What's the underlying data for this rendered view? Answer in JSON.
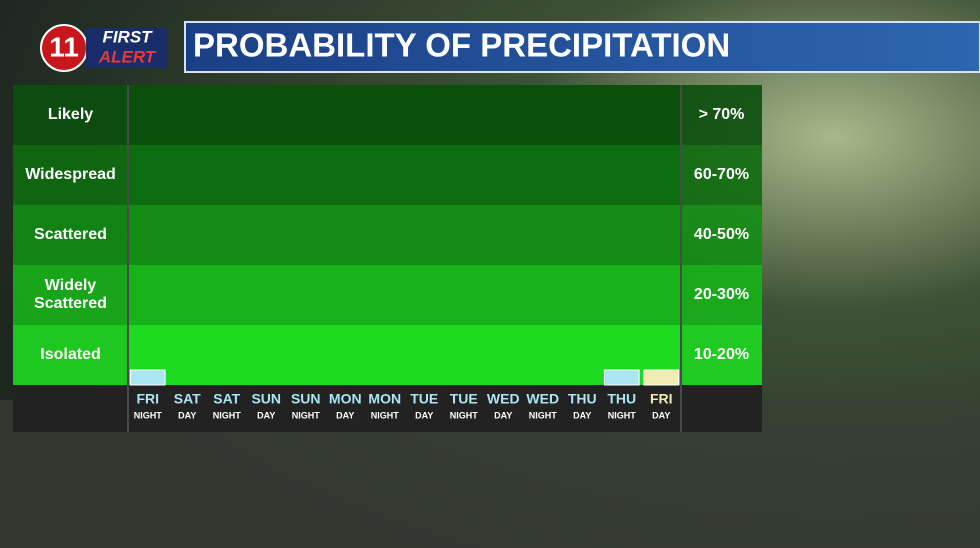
{
  "logo": {
    "number": "11",
    "line1": "FIRST",
    "line2": "ALERT"
  },
  "chart_data": {
    "type": "bar",
    "title": "PROBABILITY OF PRECIPITATION",
    "rows": [
      {
        "name": "Likely",
        "range": "> 70%",
        "color": "#0b4f0d"
      },
      {
        "name": "Widespread",
        "range": "60-70%",
        "color": "#0e6c10"
      },
      {
        "name": "Scattered",
        "range": "40-50%",
        "color": "#128c14"
      },
      {
        "name": "Widely Scattered",
        "range": "20-30%",
        "color": "#17b219"
      },
      {
        "name": "Isolated",
        "range": "10-20%",
        "color": "#1dd91f"
      }
    ],
    "categories": [
      "FRI",
      "SAT",
      "SAT",
      "SUN",
      "SUN",
      "MON",
      "MON",
      "TUE",
      "TUE",
      "WED",
      "WED",
      "THU",
      "THU",
      "FRI"
    ],
    "periods": [
      "NIGHT",
      "DAY",
      "NIGHT",
      "DAY",
      "NIGHT",
      "DAY",
      "NIGHT",
      "DAY",
      "NIGHT",
      "DAY",
      "NIGHT",
      "DAY",
      "NIGHT",
      "DAY"
    ],
    "values": [
      5,
      0,
      0,
      0,
      0,
      0,
      0,
      0,
      0,
      0,
      0,
      0,
      5,
      5
    ],
    "colors": [
      "#a9e6f2",
      "#a9e6f2",
      "#a9e6f2",
      "#a9e6f2",
      "#a9e6f2",
      "#a9e6f2",
      "#a9e6f2",
      "#a9e6f2",
      "#a9e6f2",
      "#a9e6f2",
      "#a9e6f2",
      "#a9e6f2",
      "#a9e6f2",
      "#f3ecb2"
    ],
    "ylim": [
      0,
      100
    ]
  }
}
